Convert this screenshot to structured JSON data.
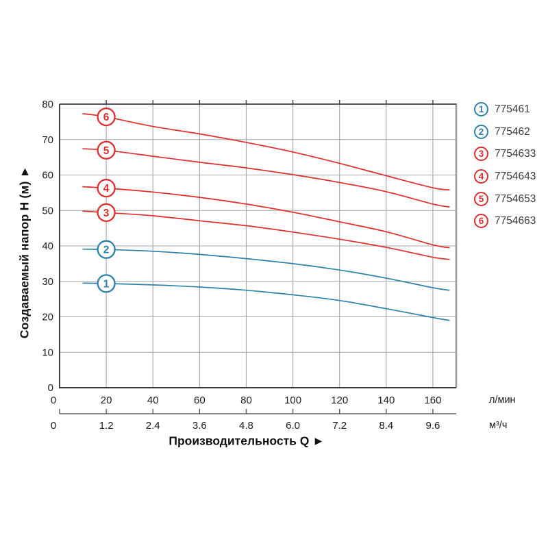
{
  "chart": {
    "y_axis_title": "Создаваемый напор H (м) ►",
    "x_axis_title": "Производительность Q ►",
    "unit_primary": "л/мин",
    "unit_secondary": "м³/ч"
  },
  "legend": {
    "items": [
      {
        "num": "1",
        "code": "775461",
        "color": "blue"
      },
      {
        "num": "2",
        "code": "775462",
        "color": "blue"
      },
      {
        "num": "3",
        "code": "7754633",
        "color": "red"
      },
      {
        "num": "4",
        "code": "7754643",
        "color": "red"
      },
      {
        "num": "5",
        "code": "7754653",
        "color": "red"
      },
      {
        "num": "6",
        "code": "7754663",
        "color": "red"
      }
    ]
  },
  "colors": {
    "blue": "#2e81a6",
    "red": "#e02c2c",
    "grid": "#a6a6a6",
    "frame": "#3d3d3d",
    "frame_right": "#9c9c9c",
    "axis2_line": "#8a8a8a",
    "axis2_tick": "#555555",
    "tick_text": "#1b1b1b"
  },
  "chart_data": {
    "type": "line",
    "title": "",
    "xlabel": "Производительность Q",
    "ylabel": "Создаваемый напор H (м)",
    "x_units": [
      "л/мин",
      "м³/ч"
    ],
    "x_ticks_lmin": [
      0,
      20,
      40,
      60,
      80,
      100,
      120,
      140,
      160
    ],
    "x_ticks_m3h": [
      "0",
      "1.2",
      "2.4",
      "3.6",
      "4.8",
      "6.0",
      "7.2",
      "8.4",
      "9.6"
    ],
    "y_ticks": [
      0,
      10,
      20,
      30,
      40,
      50,
      60,
      70,
      80
    ],
    "xlim_lmin": [
      0,
      170
    ],
    "ylim": [
      0,
      80
    ],
    "grid": true,
    "legend_position": "right",
    "marker_q_lmin": 20,
    "series": [
      {
        "name": "1",
        "article": "775461",
        "color": "blue",
        "points": [
          [
            10,
            29.5
          ],
          [
            20,
            29.4
          ],
          [
            40,
            29.0
          ],
          [
            60,
            28.4
          ],
          [
            80,
            27.5
          ],
          [
            100,
            26.2
          ],
          [
            120,
            24.6
          ],
          [
            140,
            22.3
          ],
          [
            160,
            19.8
          ],
          [
            167,
            19.0
          ]
        ]
      },
      {
        "name": "2",
        "article": "775462",
        "color": "blue",
        "points": [
          [
            10,
            39.1
          ],
          [
            20,
            39.0
          ],
          [
            40,
            38.5
          ],
          [
            60,
            37.6
          ],
          [
            80,
            36.4
          ],
          [
            100,
            35.0
          ],
          [
            120,
            33.2
          ],
          [
            140,
            30.9
          ],
          [
            160,
            28.2
          ],
          [
            167,
            27.5
          ]
        ]
      },
      {
        "name": "3",
        "article": "7754633",
        "color": "red",
        "points": [
          [
            10,
            49.8
          ],
          [
            20,
            49.4
          ],
          [
            40,
            48.5
          ],
          [
            60,
            47.1
          ],
          [
            80,
            45.7
          ],
          [
            100,
            43.9
          ],
          [
            120,
            41.9
          ],
          [
            140,
            39.6
          ],
          [
            160,
            36.8
          ],
          [
            167,
            36.2
          ]
        ]
      },
      {
        "name": "4",
        "article": "7754643",
        "color": "red",
        "points": [
          [
            10,
            56.7
          ],
          [
            20,
            56.3
          ],
          [
            40,
            55.2
          ],
          [
            60,
            53.7
          ],
          [
            80,
            51.8
          ],
          [
            100,
            49.5
          ],
          [
            120,
            46.8
          ],
          [
            140,
            44.0
          ],
          [
            160,
            40.3
          ],
          [
            167,
            39.5
          ]
        ]
      },
      {
        "name": "5",
        "article": "7754653",
        "color": "red",
        "points": [
          [
            10,
            67.4
          ],
          [
            20,
            67.0
          ],
          [
            40,
            65.3
          ],
          [
            60,
            63.6
          ],
          [
            80,
            62.0
          ],
          [
            100,
            60.1
          ],
          [
            120,
            57.9
          ],
          [
            140,
            55.3
          ],
          [
            160,
            51.8
          ],
          [
            167,
            51.0
          ]
        ]
      },
      {
        "name": "6",
        "article": "7754663",
        "color": "red",
        "points": [
          [
            10,
            77.3
          ],
          [
            20,
            76.4
          ],
          [
            40,
            73.7
          ],
          [
            60,
            71.6
          ],
          [
            80,
            69.2
          ],
          [
            100,
            66.5
          ],
          [
            120,
            63.3
          ],
          [
            140,
            59.8
          ],
          [
            160,
            56.4
          ],
          [
            167,
            55.8
          ]
        ]
      }
    ]
  }
}
